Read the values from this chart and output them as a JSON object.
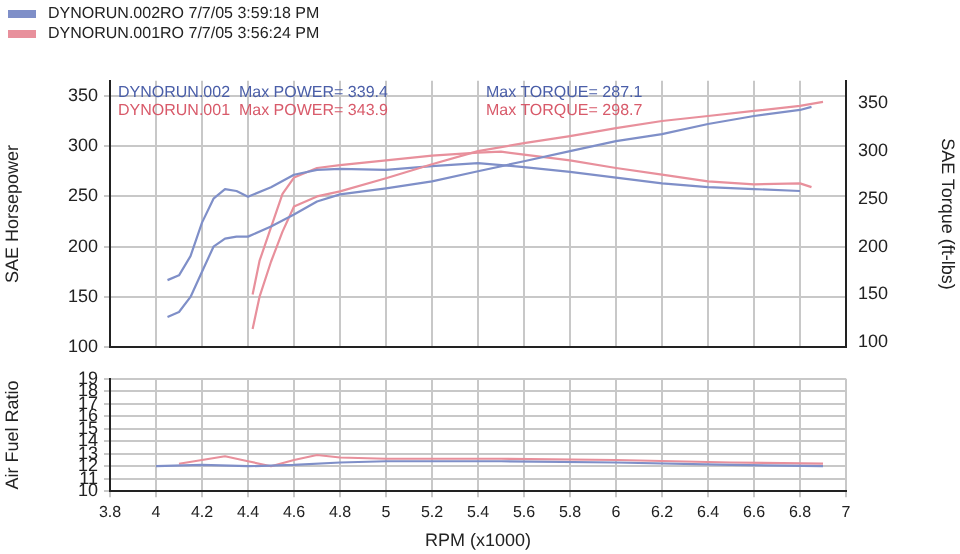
{
  "chart_data": [
    {
      "type": "line",
      "ylabel": "SAE Horsepower",
      "y2label": "SAE Torque (ft-lbs)",
      "xlim": [
        3.8,
        7.0
      ],
      "ylim": [
        100,
        365
      ],
      "yticks": [
        100,
        150,
        200,
        250,
        300,
        350
      ],
      "y2lim": [
        95,
        373
      ],
      "y2ticks": [
        100,
        150,
        200,
        250,
        300,
        350
      ],
      "grid": true,
      "legend": "top left",
      "tick_labels": "y",
      "marker": "none",
      "annotations": [
        "DYNORUN.002  Max POWER= 339.4",
        "Max TORQUE= 287.1",
        "DYNORUN.001  Max POWER= 343.9",
        "Max TORQUE= 298.7"
      ],
      "series": [
        {
          "name": "DYNORUN.002RO  7/7/05 3:59:18 PM",
          "color": "#7f8fc8",
          "x": [
            4.05,
            4.1,
            4.15,
            4.2,
            4.25,
            4.3,
            4.35,
            4.4,
            4.5,
            4.6,
            4.7,
            4.8,
            5.0,
            5.2,
            5.4,
            5.6,
            5.8,
            6.0,
            6.2,
            6.4,
            6.6,
            6.8,
            6.85
          ],
          "values": [
            130,
            135,
            150,
            175,
            200,
            208,
            210,
            210,
            220,
            232,
            245,
            252,
            258,
            265,
            275,
            285,
            295,
            305,
            312,
            322,
            330,
            336,
            339
          ]
        },
        {
          "name": "DYNORUN.001RO  7/7/05 3:56:24 PM",
          "color": "#e8909c",
          "x": [
            4.42,
            4.45,
            4.5,
            4.55,
            4.6,
            4.7,
            4.8,
            5.0,
            5.2,
            5.4,
            5.6,
            5.8,
            6.0,
            6.2,
            6.4,
            6.6,
            6.8,
            6.9
          ],
          "values": [
            118,
            150,
            185,
            215,
            240,
            250,
            255,
            268,
            282,
            295,
            303,
            310,
            318,
            325,
            330,
            335,
            340,
            344
          ]
        },
        {
          "color": "#7f8fc8",
          "axis": "y2",
          "x": [
            4.05,
            4.1,
            4.15,
            4.2,
            4.25,
            4.3,
            4.35,
            4.4,
            4.5,
            4.6,
            4.7,
            4.8,
            5.0,
            5.2,
            5.4,
            5.6,
            5.8,
            6.0,
            6.2,
            6.4,
            6.6,
            6.8
          ],
          "values": [
            165,
            170,
            190,
            225,
            250,
            260,
            258,
            252,
            262,
            275,
            280,
            281,
            280,
            284,
            287,
            283,
            278,
            272,
            266,
            262,
            260,
            258
          ]
        },
        {
          "color": "#e8909c",
          "axis": "y2",
          "x": [
            4.42,
            4.45,
            4.5,
            4.55,
            4.6,
            4.7,
            4.8,
            5.0,
            5.2,
            5.4,
            5.5,
            5.6,
            5.8,
            6.0,
            6.2,
            6.4,
            6.6,
            6.8,
            6.85
          ],
          "values": [
            150,
            185,
            220,
            255,
            272,
            282,
            285,
            290,
            295,
            298,
            299,
            296,
            290,
            282,
            275,
            268,
            265,
            266,
            262
          ]
        }
      ]
    },
    {
      "type": "line",
      "xlabel": "RPM (x1000)",
      "ylabel": "Air Fuel Ratio",
      "xlim": [
        3.8,
        7.0
      ],
      "xticks": [
        3.8,
        4.0,
        4.2,
        4.4,
        4.6,
        4.8,
        5.0,
        5.2,
        5.4,
        5.6,
        5.8,
        6.0,
        6.2,
        6.4,
        6.6,
        6.8,
        7.0
      ],
      "ylim": [
        10,
        19
      ],
      "yticks": [
        10,
        11,
        12,
        13,
        14,
        15,
        16,
        17,
        18,
        19
      ],
      "grid": true,
      "marker": "none",
      "series": [
        {
          "color": "#7f8fc8",
          "x": [
            4.0,
            4.2,
            4.4,
            4.6,
            4.8,
            5.0,
            5.5,
            6.0,
            6.5,
            6.9
          ],
          "values": [
            12.0,
            12.1,
            12.0,
            12.1,
            12.3,
            12.4,
            12.4,
            12.3,
            12.1,
            12.0
          ]
        },
        {
          "color": "#e8909c",
          "x": [
            4.1,
            4.2,
            4.3,
            4.4,
            4.5,
            4.6,
            4.7,
            4.8,
            5.0,
            5.5,
            6.0,
            6.5,
            6.9
          ],
          "values": [
            12.2,
            12.5,
            12.8,
            12.4,
            12.0,
            12.5,
            12.9,
            12.7,
            12.6,
            12.6,
            12.5,
            12.3,
            12.2
          ]
        }
      ]
    }
  ]
}
